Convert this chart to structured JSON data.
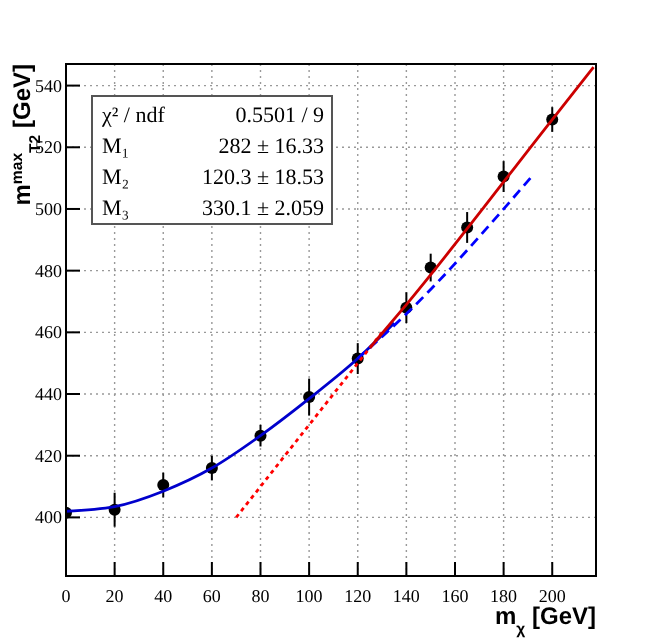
{
  "chart_data": {
    "type": "scatter",
    "xlabel": "m$_{χ}$ [GeV]",
    "ylabel": "m$^{max}$$_{T2}$ [GeV]",
    "xlim": [
      0,
      218
    ],
    "ylim": [
      381,
      547
    ],
    "xticks": [
      0,
      20,
      40,
      60,
      80,
      100,
      120,
      140,
      160,
      180,
      200
    ],
    "yticks": [
      400,
      420,
      440,
      460,
      480,
      500,
      520,
      540
    ],
    "grid": true,
    "annotations": [
      "χ² / ndf",
      "0.5501 / 9",
      "M₁",
      "282 ± 16.33",
      "M₂",
      "120.3 ± 18.53",
      "M₃",
      "330.1 ± 2.059"
    ],
    "series": [
      {
        "color": "#000000",
        "marker": "circle",
        "x": [
          0,
          20,
          40,
          60,
          80,
          100,
          120,
          140,
          150,
          165,
          180,
          200
        ],
        "values": [
          401.5,
          402.5,
          410.5,
          416,
          426.5,
          439,
          451.5,
          468,
          481,
          494,
          510.5,
          529
        ],
        "errors": [
          1,
          5.5,
          4,
          4,
          3.5,
          6,
          5,
          5,
          4.5,
          5,
          5,
          4
        ]
      },
      {
        "type": "line",
        "color": "#0000cc",
        "line_style": "solid",
        "x": [
          0,
          20,
          40,
          60,
          80,
          100,
          120,
          135
        ],
        "values": [
          402,
          403.5,
          408.5,
          416,
          426.5,
          438.5,
          451.5,
          463
        ]
      },
      {
        "type": "line",
        "color": "#0000ff",
        "line_style": "dashed",
        "x": [
          120,
          140,
          191
        ],
        "values": [
          451.5,
          466,
          510
        ]
      },
      {
        "type": "line",
        "color": "#ff0000",
        "line_style": "dotted",
        "x": [
          70,
          130
        ],
        "values": [
          400,
          460
        ]
      },
      {
        "type": "line",
        "color": "#cc0000",
        "line_style": "solid",
        "x": [
          125,
          140,
          200,
          217
        ],
        "values": [
          455,
          469,
          529,
          546
        ]
      }
    ]
  }
}
